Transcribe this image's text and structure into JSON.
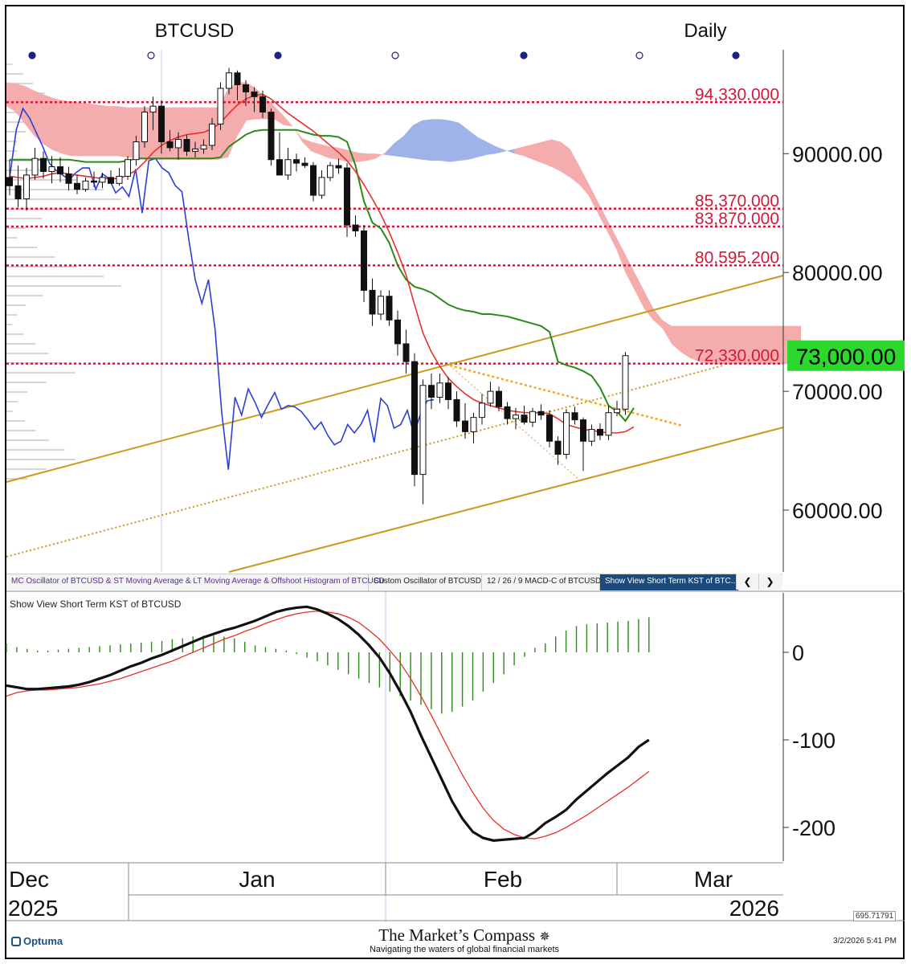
{
  "header": {
    "symbol": "BTCUSD",
    "period": "Daily"
  },
  "colors": {
    "up_candle": "#ffffff",
    "down_candle": "#111111",
    "fib_line": "#d01a3a",
    "st_ma": "#e8302a",
    "lt_ma": "#2a8a1a",
    "lagging_line": "#2b3fd6",
    "channel": "#c99a1e",
    "last_price_bg": "#2bd82b",
    "cloud_bear": "#f4a8a8",
    "cloud_bull": "#9aaee8",
    "kst": "#111111",
    "kst_signal": "#e8302a",
    "histogram": "#2a8a1a"
  },
  "chart_data": [
    {
      "type": "candlestick",
      "title": "BTCUSD",
      "period": "Daily",
      "ylim": [
        55000,
        97000
      ],
      "y_ticks": [
        "90000.00",
        "80000.00",
        "70000.00",
        "60000.00"
      ],
      "y_tick_values": [
        90000,
        80000,
        70000,
        60000
      ],
      "last_price_label": "73,000.00",
      "last_price": 73000,
      "fib_levels": [
        {
          "label": "94,330.000",
          "value": 94330
        },
        {
          "label": "85,370.000",
          "value": 85370
        },
        {
          "label": "83,870.000",
          "value": 83870
        },
        {
          "label": "80,595.200",
          "value": 80595.2
        },
        {
          "label": "72,330.000",
          "value": 72330
        }
      ],
      "x_months": [
        "Dec",
        "Jan",
        "Feb",
        "Mar"
      ],
      "x_years": [
        "2025",
        "2026"
      ],
      "bars": [
        {
          "o": 88000,
          "h": 89500,
          "l": 86500,
          "c": 87300
        },
        {
          "o": 87300,
          "h": 89000,
          "l": 85500,
          "c": 86200
        },
        {
          "o": 86200,
          "h": 88800,
          "l": 85200,
          "c": 88200
        },
        {
          "o": 88200,
          "h": 90500,
          "l": 87800,
          "c": 89600
        },
        {
          "o": 89600,
          "h": 90200,
          "l": 87900,
          "c": 88500
        },
        {
          "o": 88500,
          "h": 89800,
          "l": 87500,
          "c": 88900
        },
        {
          "o": 88900,
          "h": 89700,
          "l": 87600,
          "c": 88300
        },
        {
          "o": 88300,
          "h": 88900,
          "l": 86900,
          "c": 87500
        },
        {
          "o": 87500,
          "h": 88200,
          "l": 86600,
          "c": 87000
        },
        {
          "o": 87000,
          "h": 88000,
          "l": 86800,
          "c": 87700
        },
        {
          "o": 87700,
          "h": 88500,
          "l": 87200,
          "c": 87600
        },
        {
          "o": 87600,
          "h": 88400,
          "l": 87100,
          "c": 88000
        },
        {
          "o": 88000,
          "h": 88600,
          "l": 87500,
          "c": 87500
        },
        {
          "o": 87500,
          "h": 88800,
          "l": 87300,
          "c": 88100
        },
        {
          "o": 88100,
          "h": 89800,
          "l": 87800,
          "c": 89500
        },
        {
          "o": 89500,
          "h": 91500,
          "l": 89000,
          "c": 91000
        },
        {
          "o": 91000,
          "h": 94000,
          "l": 90500,
          "c": 93500
        },
        {
          "o": 93500,
          "h": 94800,
          "l": 92000,
          "c": 94000
        },
        {
          "o": 94000,
          "h": 94500,
          "l": 90000,
          "c": 91000
        },
        {
          "o": 91000,
          "h": 92000,
          "l": 90200,
          "c": 90500
        },
        {
          "o": 90500,
          "h": 91800,
          "l": 89500,
          "c": 91200
        },
        {
          "o": 91200,
          "h": 91600,
          "l": 89800,
          "c": 90200
        },
        {
          "o": 90200,
          "h": 91000,
          "l": 89700,
          "c": 90400
        },
        {
          "o": 90400,
          "h": 91200,
          "l": 90000,
          "c": 90700
        },
        {
          "o": 90700,
          "h": 93000,
          "l": 90300,
          "c": 92500
        },
        {
          "o": 92500,
          "h": 96000,
          "l": 92000,
          "c": 95500
        },
        {
          "o": 95500,
          "h": 97200,
          "l": 95000,
          "c": 96800
        },
        {
          "o": 96800,
          "h": 97000,
          "l": 94500,
          "c": 95800
        },
        {
          "o": 95800,
          "h": 96200,
          "l": 94000,
          "c": 95200
        },
        {
          "o": 95200,
          "h": 95600,
          "l": 93500,
          "c": 94800
        },
        {
          "o": 94800,
          "h": 95300,
          "l": 93000,
          "c": 93500
        },
        {
          "o": 93500,
          "h": 93800,
          "l": 89000,
          "c": 89500
        },
        {
          "o": 89500,
          "h": 91800,
          "l": 88500,
          "c": 88200
        },
        {
          "o": 88200,
          "h": 90500,
          "l": 87800,
          "c": 89500
        },
        {
          "o": 89500,
          "h": 90000,
          "l": 88500,
          "c": 89200
        },
        {
          "o": 89200,
          "h": 89700,
          "l": 88800,
          "c": 89000
        },
        {
          "o": 89000,
          "h": 89300,
          "l": 86000,
          "c": 86500
        },
        {
          "o": 86500,
          "h": 88600,
          "l": 86200,
          "c": 88000
        },
        {
          "o": 88000,
          "h": 89300,
          "l": 87700,
          "c": 89000
        },
        {
          "o": 89000,
          "h": 89600,
          "l": 88300,
          "c": 88800
        },
        {
          "o": 88800,
          "h": 89200,
          "l": 83000,
          "c": 84000
        },
        {
          "o": 84000,
          "h": 84800,
          "l": 83000,
          "c": 83500
        },
        {
          "o": 83500,
          "h": 84000,
          "l": 77500,
          "c": 78500
        },
        {
          "o": 78500,
          "h": 79500,
          "l": 75500,
          "c": 76500
        },
        {
          "o": 76500,
          "h": 78500,
          "l": 76000,
          "c": 78000
        },
        {
          "o": 78000,
          "h": 78500,
          "l": 75500,
          "c": 76000
        },
        {
          "o": 76000,
          "h": 76800,
          "l": 73000,
          "c": 74000
        },
        {
          "o": 74000,
          "h": 75200,
          "l": 71500,
          "c": 72500
        },
        {
          "o": 72500,
          "h": 73200,
          "l": 62000,
          "c": 63000
        },
        {
          "o": 63000,
          "h": 71000,
          "l": 60500,
          "c": 70500
        },
        {
          "o": 70500,
          "h": 71500,
          "l": 68500,
          "c": 69500
        },
        {
          "o": 69500,
          "h": 71500,
          "l": 69000,
          "c": 70700
        },
        {
          "o": 70700,
          "h": 71200,
          "l": 68500,
          "c": 69300
        },
        {
          "o": 69300,
          "h": 70000,
          "l": 67000,
          "c": 67500
        },
        {
          "o": 67500,
          "h": 69000,
          "l": 66000,
          "c": 66600
        },
        {
          "o": 66600,
          "h": 68200,
          "l": 65600,
          "c": 67800
        },
        {
          "o": 67800,
          "h": 69800,
          "l": 67200,
          "c": 69000
        },
        {
          "o": 69000,
          "h": 70800,
          "l": 68700,
          "c": 70000
        },
        {
          "o": 70000,
          "h": 70400,
          "l": 68300,
          "c": 68700
        },
        {
          "o": 68700,
          "h": 69100,
          "l": 67200,
          "c": 67700
        },
        {
          "o": 67700,
          "h": 68600,
          "l": 66800,
          "c": 68000
        },
        {
          "o": 68000,
          "h": 68800,
          "l": 67200,
          "c": 67400
        },
        {
          "o": 67400,
          "h": 68600,
          "l": 67000,
          "c": 68300
        },
        {
          "o": 68300,
          "h": 68900,
          "l": 67600,
          "c": 68000
        },
        {
          "o": 68000,
          "h": 68400,
          "l": 65300,
          "c": 65800
        },
        {
          "o": 65800,
          "h": 66200,
          "l": 63800,
          "c": 64700
        },
        {
          "o": 64700,
          "h": 68500,
          "l": 64300,
          "c": 68200
        },
        {
          "o": 68200,
          "h": 68700,
          "l": 67200,
          "c": 67600
        },
        {
          "o": 67600,
          "h": 67800,
          "l": 63300,
          "c": 65800
        },
        {
          "o": 65800,
          "h": 67200,
          "l": 65400,
          "c": 66800
        },
        {
          "o": 66800,
          "h": 67300,
          "l": 65900,
          "c": 66300
        },
        {
          "o": 66300,
          "h": 68800,
          "l": 65900,
          "c": 68200
        },
        {
          "o": 68200,
          "h": 69200,
          "l": 67900,
          "c": 68500
        },
        {
          "o": 68500,
          "h": 73300,
          "l": 68000,
          "c": 73000
        }
      ],
      "st_ma": [
        88100,
        88000,
        87900,
        88000,
        88100,
        88300,
        88400,
        88300,
        88200,
        88100,
        88000,
        87900,
        87900,
        87900,
        88200,
        88600,
        89300,
        90100,
        90700,
        91100,
        91400,
        91600,
        91700,
        91800,
        92100,
        92600,
        93400,
        94100,
        94600,
        94900,
        95000,
        94600,
        94000,
        93400,
        92900,
        92400,
        91900,
        91300,
        90700,
        90100,
        89400,
        88500,
        87400,
        86200,
        84900,
        83400,
        81700,
        79800,
        77300,
        74900,
        73300,
        72100,
        71100,
        70400,
        69800,
        69300,
        69000,
        68800,
        68600,
        68400,
        68300,
        68200,
        68200,
        68200,
        68100,
        67700,
        67200,
        67000,
        66800,
        66700,
        66600,
        66500,
        66500,
        66600,
        67000
      ],
      "lt_ma": [
        89500,
        89500,
        89500,
        89500,
        89500,
        89500,
        89500,
        89500,
        89400,
        89300,
        89300,
        89300,
        89300,
        89300,
        89400,
        89600,
        89600,
        89600,
        89600,
        89600,
        89600,
        89600,
        89600,
        89600,
        89600,
        89700,
        90600,
        91100,
        91600,
        91900,
        92000,
        92000,
        92000,
        92000,
        92000,
        91800,
        91600,
        91500,
        91500,
        91400,
        91000,
        89000,
        86000,
        84200,
        83700,
        82500,
        80600,
        79400,
        78800,
        78600,
        78300,
        77800,
        77300,
        77000,
        76800,
        76700,
        76500,
        76500,
        76400,
        76300,
        76100,
        75900,
        75700,
        75500,
        75000,
        72500,
        72200,
        72000,
        71700,
        71300,
        70300,
        68800,
        68300,
        67500,
        68600
      ],
      "lagging_line": [
        88000,
        92000,
        93800,
        93000,
        91800,
        90600,
        89200,
        88600,
        88200,
        87800,
        88400,
        88800,
        88800,
        87000,
        88300,
        87900,
        86700,
        87200,
        86400,
        88700,
        85000,
        89400,
        89600,
        88800,
        88400,
        87300,
        86800,
        82900,
        79400,
        77400,
        79400,
        75200,
        68200,
        63400,
        69500,
        68000,
        70200,
        69100,
        67800,
        68900,
        69900,
        68500,
        68800,
        68700,
        68300,
        67600,
        66800,
        67400,
        66300,
        65500,
        65800,
        67200,
        66500,
        67200,
        68400,
        65700,
        69400,
        68800,
        66900,
        67200,
        68400,
        66400,
        68100,
        69200,
        69300
      ],
      "cloud_top": [
        96000,
        95900,
        95700,
        95300,
        95000,
        94700,
        94500,
        94400,
        94300,
        94200,
        94100,
        94000,
        94000,
        93900,
        93900,
        93900,
        93900,
        93900,
        93900,
        93900,
        93900,
        93900,
        93900,
        93900,
        95500,
        96000,
        96000,
        95500,
        94800,
        94000,
        93200,
        92300,
        91300,
        91000,
        90800,
        90600,
        90500,
        90300,
        90100,
        90000,
        90000,
        89900,
        89800,
        89700,
        89600,
        89500,
        89400,
        89400,
        89300,
        89400,
        89500,
        89700,
        89900,
        90000,
        90200,
        90400,
        90600,
        90800,
        91000,
        91200,
        91000,
        90400,
        89000,
        87500,
        86000,
        84500,
        83000,
        81500,
        80000,
        78500,
        77000,
        76000,
        75500,
        75500,
        75500,
        75500,
        75500,
        75500,
        75500,
        75500,
        75500,
        75500,
        75500,
        75500,
        75500,
        75500,
        75500
      ],
      "cloud_bottom": [
        94000,
        93500,
        92500,
        91500,
        90800,
        90300,
        90000,
        89800,
        89800,
        89800,
        89800,
        89800,
        89800,
        89700,
        89600,
        89500,
        89500,
        89500,
        89500,
        89500,
        89500,
        89500,
        89500,
        89500,
        89700,
        91500,
        92800,
        92900,
        92900,
        92900,
        92400,
        92300,
        91000,
        90200,
        89900,
        89600,
        89500,
        89300,
        89300,
        89400,
        89600,
        90100,
        90900,
        91500,
        92400,
        92800,
        92900,
        92900,
        92800,
        92600,
        92000,
        91400,
        91000,
        90600,
        90300,
        90000,
        89800,
        89500,
        89200,
        88900,
        88500,
        88000,
        87400,
        86500,
        85000,
        83500,
        82000,
        80000,
        78500,
        77000,
        76000,
        75300,
        74000,
        73300,
        72800,
        72500,
        72300,
        72300,
        72300,
        72300,
        72300,
        72300,
        72300,
        72300,
        72300,
        72300,
        72300
      ]
    },
    {
      "type": "line",
      "title": "Show View Short Term KST of BTCUSD",
      "ylim": [
        -225,
        50
      ],
      "y_ticks": [
        "0",
        "-100",
        "-200"
      ],
      "y_tick_values": [
        0,
        -100,
        -200
      ],
      "series": [
        {
          "name": "KST",
          "values": [
            -38,
            -40,
            -42,
            -42,
            -41,
            -40,
            -39,
            -37,
            -34,
            -30,
            -26,
            -21,
            -16,
            -12,
            -7,
            -3,
            2,
            7,
            12,
            17,
            21,
            25,
            28,
            32,
            36,
            41,
            46,
            49,
            51,
            52,
            49,
            44,
            38,
            30,
            20,
            8,
            -6,
            -24,
            -45,
            -68,
            -95,
            -120,
            -145,
            -170,
            -190,
            -205,
            -212,
            -215,
            -214,
            -213,
            -212,
            -205,
            -195,
            -188,
            -180,
            -168,
            -158,
            -148,
            -138,
            -129,
            -120,
            -108,
            -100
          ]
        },
        {
          "name": "Signal",
          "values": [
            -50,
            -46,
            -44,
            -43,
            -43,
            -42,
            -41,
            -40,
            -38,
            -36,
            -33,
            -30,
            -26,
            -22,
            -18,
            -14,
            -10,
            -5,
            0,
            5,
            10,
            15,
            19,
            24,
            28,
            33,
            37,
            41,
            44,
            46,
            47,
            46,
            44,
            40,
            34,
            25,
            15,
            2,
            -12,
            -30,
            -50,
            -72,
            -95,
            -118,
            -140,
            -160,
            -178,
            -192,
            -202,
            -208,
            -212,
            -213,
            -210,
            -206,
            -200,
            -193,
            -186,
            -178,
            -170,
            -162,
            -154,
            -145,
            -136
          ]
        },
        {
          "name": "Histogram",
          "values": [
            10,
            6,
            4,
            2,
            2,
            3,
            4,
            5,
            6,
            7,
            8,
            9,
            10,
            11,
            12,
            13,
            15,
            16,
            18,
            19,
            19,
            18,
            16,
            12,
            8,
            6,
            4,
            2,
            -2,
            -6,
            -10,
            -15,
            -20,
            -25,
            -30,
            -35,
            -40,
            -45,
            -50,
            -55,
            -60,
            -65,
            -70,
            -68,
            -62,
            -55,
            -45,
            -35,
            -25,
            -15,
            -5,
            5,
            10,
            18,
            25,
            30,
            32,
            33,
            34,
            35,
            36,
            38,
            40
          ]
        }
      ]
    }
  ],
  "tabs": [
    {
      "label": "MC Oscillator of BTCUSD & ST Moving Average & LT Moving Average & Offshoot Histogram of BTCUSD"
    },
    {
      "label": "Custom Oscillator of BTCUSD"
    },
    {
      "label": "12 / 26 / 9 MACD-C of BTCUSD"
    },
    {
      "label": "Show View Short Term KST of BTC..."
    }
  ],
  "tab_nav": {
    "prev": "❮",
    "next": "❯"
  },
  "scale_value": "695.71791",
  "footer": {
    "brand": "The Market’s Compass",
    "tagline": "Navigating the waters of global financial markets",
    "logo_text": "Optuma",
    "timestamp": "3/2/2026 5:41 PM"
  }
}
